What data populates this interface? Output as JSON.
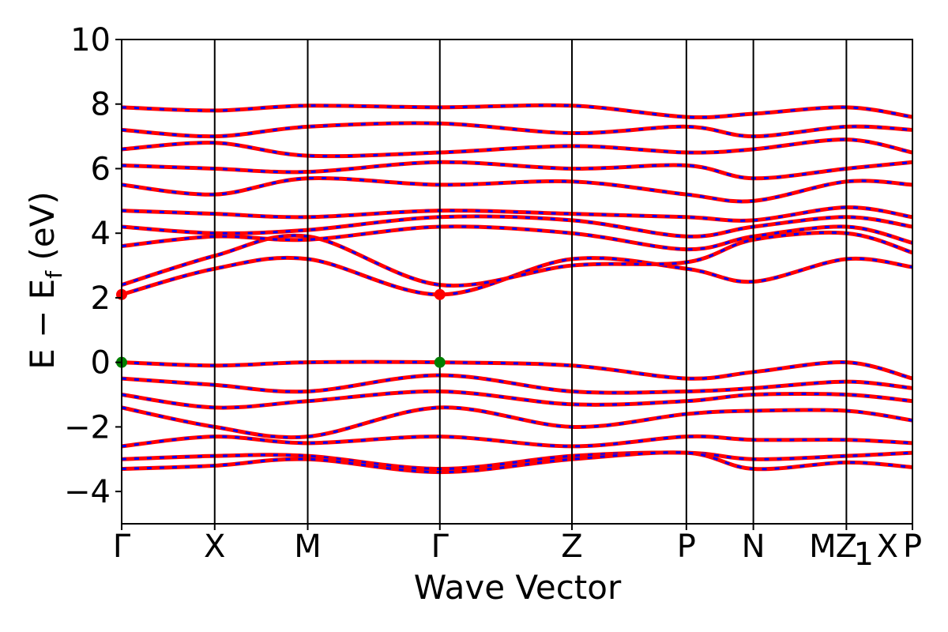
{
  "chart_data": {
    "type": "line",
    "title": "",
    "xlabel": "Wave Vector",
    "ylabel_main": "E − E",
    "ylabel_sub": "f",
    "ylabel_unit": " (eV)",
    "ylim": [
      -5,
      10
    ],
    "yticks": [
      -4,
      -2,
      0,
      2,
      4,
      6,
      8,
      10
    ],
    "ytick_labels": [
      "−4",
      "−2",
      "0",
      "2",
      "4",
      "6",
      "8",
      "10"
    ],
    "kpath_positions": [
      0,
      1,
      2,
      3.42,
      4.84,
      6.07,
      6.79,
      7.79,
      8.5
    ],
    "kpath_labels": [
      "Γ",
      "X",
      "M",
      "Γ",
      "Z",
      "P",
      "N",
      "M",
      "Z",
      "1",
      "X",
      "P"
    ],
    "kpath_label_map": [
      {
        "pos": 0,
        "text": "Γ"
      },
      {
        "pos": 1,
        "text": "X"
      },
      {
        "pos": 2,
        "text": "M"
      },
      {
        "pos": 3.42,
        "text": "Γ"
      },
      {
        "pos": 4.84,
        "text": "Z"
      },
      {
        "pos": 6.07,
        "text": "P"
      },
      {
        "pos": 6.79,
        "text": "N"
      },
      {
        "pos": 7.79,
        "text": "M|Z₁"
      },
      {
        "pos": 8.5,
        "text": "X P"
      }
    ],
    "series": [
      {
        "role": "spin-up",
        "color": "#ff0000",
        "bands": [
          {
            "x": [
              0,
              1,
              2,
              3.42,
              4.84,
              6.07,
              6.79,
              7.79,
              8.5
            ],
            "y": [
              2.1,
              2.9,
              3.2,
              2.1,
              3.2,
              2.9,
              2.5,
              3.2,
              2.95
            ]
          },
          {
            "x": [
              0,
              1,
              2,
              3.42,
              4.84,
              6.07,
              6.79,
              7.79,
              8.5
            ],
            "y": [
              2.4,
              3.3,
              3.9,
              2.4,
              3.0,
              3.1,
              3.8,
              4.0,
              3.4
            ]
          },
          {
            "x": [
              0,
              1,
              2,
              3.42,
              4.84,
              6.07,
              6.79,
              7.79,
              8.5
            ],
            "y": [
              3.6,
              3.9,
              3.8,
              4.2,
              4.0,
              3.5,
              3.9,
              4.2,
              3.7
            ]
          },
          {
            "x": [
              0,
              1,
              2,
              3.42,
              4.84,
              6.07,
              6.79,
              7.79,
              8.5
            ],
            "y": [
              4.2,
              4.0,
              4.1,
              4.5,
              4.4,
              3.9,
              4.2,
              4.5,
              4.2
            ]
          },
          {
            "x": [
              0,
              1,
              2,
              3.42,
              4.84,
              6.07,
              6.79,
              7.79,
              8.5
            ],
            "y": [
              4.7,
              4.6,
              4.5,
              4.7,
              4.6,
              4.5,
              4.4,
              4.8,
              4.5
            ]
          },
          {
            "x": [
              0,
              1,
              2,
              3.42,
              4.84,
              6.07,
              6.79,
              7.79,
              8.5
            ],
            "y": [
              5.5,
              5.2,
              5.7,
              5.5,
              5.6,
              5.2,
              5.0,
              5.6,
              5.5
            ]
          },
          {
            "x": [
              0,
              1,
              2,
              3.42,
              4.84,
              6.07,
              6.79,
              7.79,
              8.5
            ],
            "y": [
              6.1,
              6.0,
              5.9,
              6.2,
              6.0,
              6.1,
              5.7,
              6.0,
              6.2
            ]
          },
          {
            "x": [
              0,
              1,
              2,
              3.42,
              4.84,
              6.07,
              6.79,
              7.79,
              8.5
            ],
            "y": [
              6.6,
              6.8,
              6.4,
              6.5,
              6.7,
              6.5,
              6.6,
              6.9,
              6.5
            ]
          },
          {
            "x": [
              0,
              1,
              2,
              3.42,
              4.84,
              6.07,
              6.79,
              7.79,
              8.5
            ],
            "y": [
              7.2,
              7.0,
              7.3,
              7.4,
              7.1,
              7.3,
              7.0,
              7.3,
              7.2
            ]
          },
          {
            "x": [
              0,
              1,
              2,
              3.42,
              4.84,
              6.07,
              6.79,
              7.79,
              8.5
            ],
            "y": [
              7.9,
              7.8,
              7.95,
              7.9,
              7.95,
              7.6,
              7.7,
              7.9,
              7.6
            ]
          },
          {
            "x": [
              0,
              1,
              2,
              3.42,
              4.84,
              6.07,
              6.79,
              7.79,
              8.5
            ],
            "y": [
              0.0,
              -0.1,
              0.0,
              0.0,
              -0.1,
              -0.5,
              -0.3,
              0.0,
              -0.5
            ]
          },
          {
            "x": [
              0,
              1,
              2,
              3.42,
              4.84,
              6.07,
              6.79,
              7.79,
              8.5
            ],
            "y": [
              -0.5,
              -0.7,
              -0.9,
              -0.4,
              -0.9,
              -0.9,
              -0.8,
              -0.6,
              -0.8
            ]
          },
          {
            "x": [
              0,
              1,
              2,
              3.42,
              4.84,
              6.07,
              6.79,
              7.79,
              8.5
            ],
            "y": [
              -1.0,
              -1.4,
              -1.2,
              -0.9,
              -1.3,
              -1.2,
              -1.0,
              -1.0,
              -1.2
            ]
          },
          {
            "x": [
              0,
              1,
              2,
              3.42,
              4.84,
              6.07,
              6.79,
              7.79,
              8.5
            ],
            "y": [
              -1.4,
              -2.0,
              -2.3,
              -1.4,
              -2.0,
              -1.6,
              -1.5,
              -1.5,
              -1.8
            ]
          },
          {
            "x": [
              0,
              1,
              2,
              3.42,
              4.84,
              6.07,
              6.79,
              7.79,
              8.5
            ],
            "y": [
              -2.6,
              -2.3,
              -2.5,
              -2.3,
              -2.6,
              -2.3,
              -2.4,
              -2.4,
              -2.5
            ]
          },
          {
            "x": [
              0,
              1,
              2,
              3.42,
              4.84,
              6.07,
              6.79,
              7.79,
              8.5
            ],
            "y": [
              -3.0,
              -2.9,
              -2.9,
              -3.3,
              -2.9,
              -2.8,
              -3.0,
              -2.9,
              -2.8
            ]
          },
          {
            "x": [
              0,
              1,
              2,
              3.42,
              4.84,
              6.07,
              6.79,
              7.79,
              8.5
            ],
            "y": [
              -3.3,
              -3.2,
              -3.0,
              -3.4,
              -3.0,
              -2.8,
              -3.3,
              -3.1,
              -3.25
            ]
          }
        ]
      }
    ],
    "markers": [
      {
        "x": 0,
        "y": 2.1,
        "color": "#ff0000"
      },
      {
        "x": 3.42,
        "y": 2.1,
        "color": "#ff0000"
      },
      {
        "x": 0,
        "y": 0.0,
        "color": "#008000"
      },
      {
        "x": 3.42,
        "y": 0.0,
        "color": "#008000"
      }
    ],
    "line_colors": {
      "up": "#ff0000",
      "down": "#0000ff"
    },
    "grid": false
  }
}
